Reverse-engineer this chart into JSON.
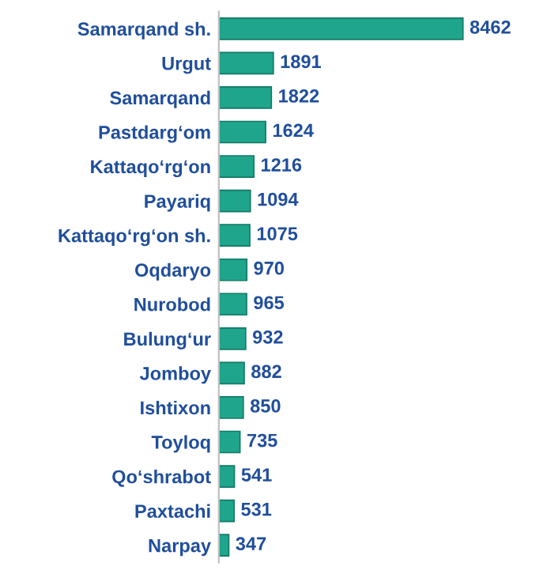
{
  "chart_data": {
    "type": "bar",
    "orientation": "horizontal",
    "categories": [
      "Samarqand sh.",
      "Urgut",
      "Samarqand",
      "Pastdarg‘om",
      "Kattaqo‘rg‘on",
      "Payariq",
      "Kattaqo‘rg‘on sh.",
      "Oqdaryo",
      "Nurobod",
      "Bulung‘ur",
      "Jomboy",
      "Ishtixon",
      "Toyloq",
      "Qo‘shrabot",
      "Paxtachi",
      "Narpay"
    ],
    "values": [
      8462,
      1891,
      1822,
      1624,
      1216,
      1094,
      1075,
      970,
      965,
      932,
      882,
      850,
      735,
      541,
      531,
      347
    ],
    "color": "#1fa58c",
    "data_labels": true
  }
}
